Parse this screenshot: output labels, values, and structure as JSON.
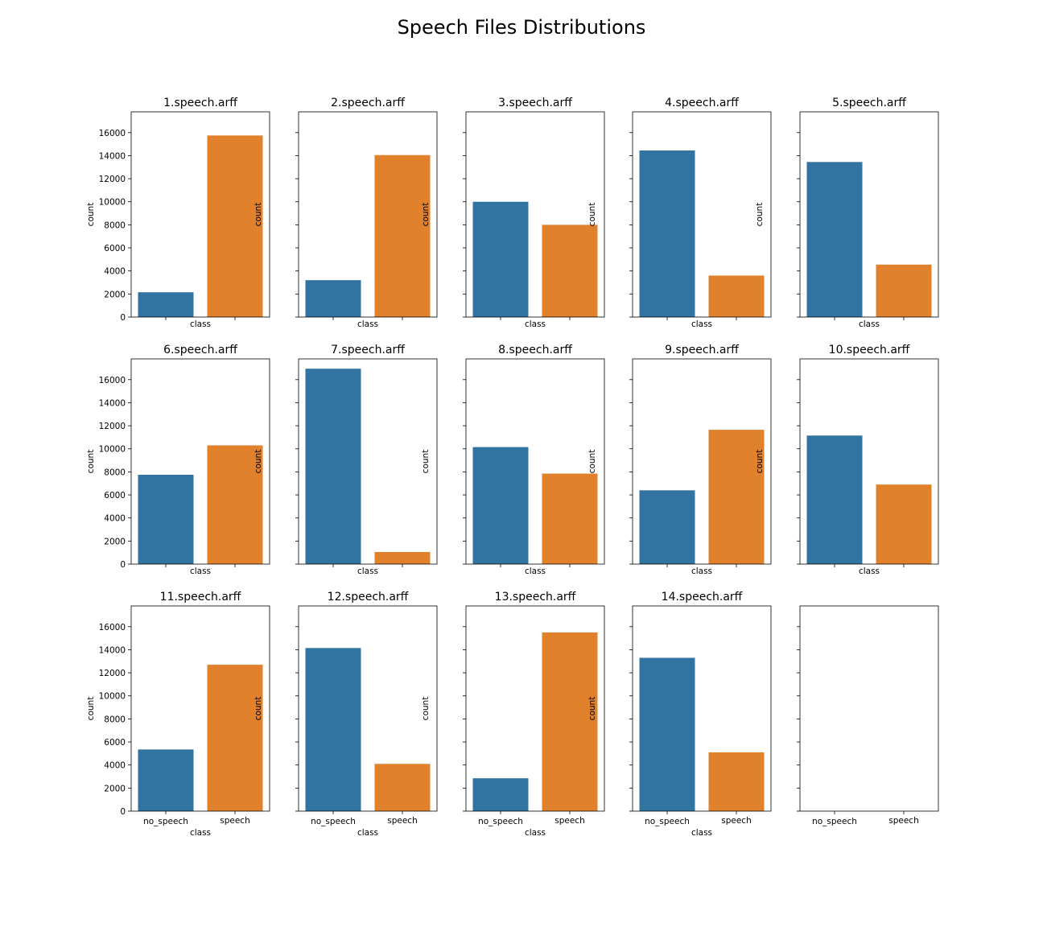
{
  "figure": {
    "title": "Speech Files Distributions",
    "xlabel": "class",
    "ylabel": "count"
  },
  "colors": {
    "no_speech": "#3274a1",
    "speech": "#e1812c"
  },
  "chart_data": {
    "type": "bar",
    "layout": "3x5 small multiples, shared y axis",
    "categories": [
      "no_speech",
      "speech"
    ],
    "ylim": [
      0,
      17800
    ],
    "yticks": [
      0,
      2000,
      4000,
      6000,
      8000,
      10000,
      12000,
      14000,
      16000
    ],
    "xlabel": "class",
    "ylabel": "count",
    "grid": false,
    "panels": [
      {
        "title": "1.speech.arff",
        "values": [
          2150,
          15750
        ]
      },
      {
        "title": "2.speech.arff",
        "values": [
          3200,
          14050
        ]
      },
      {
        "title": "3.speech.arff",
        "values": [
          10000,
          8000
        ]
      },
      {
        "title": "4.speech.arff",
        "values": [
          14450,
          3600
        ]
      },
      {
        "title": "5.speech.arff",
        "values": [
          13450,
          4550
        ]
      },
      {
        "title": "6.speech.arff",
        "values": [
          7750,
          10300
        ]
      },
      {
        "title": "7.speech.arff",
        "values": [
          16950,
          1050
        ]
      },
      {
        "title": "8.speech.arff",
        "values": [
          10150,
          7850
        ]
      },
      {
        "title": "9.speech.arff",
        "values": [
          6400,
          11650
        ]
      },
      {
        "title": "10.speech.arff",
        "values": [
          11150,
          6900
        ]
      },
      {
        "title": "11.speech.arff",
        "values": [
          5350,
          12700
        ]
      },
      {
        "title": "12.speech.arff",
        "values": [
          14150,
          4100
        ]
      },
      {
        "title": "13.speech.arff",
        "values": [
          2850,
          15500
        ]
      },
      {
        "title": "14.speech.arff",
        "values": [
          13300,
          5100
        ]
      },
      {
        "title": "",
        "values": []
      }
    ]
  }
}
